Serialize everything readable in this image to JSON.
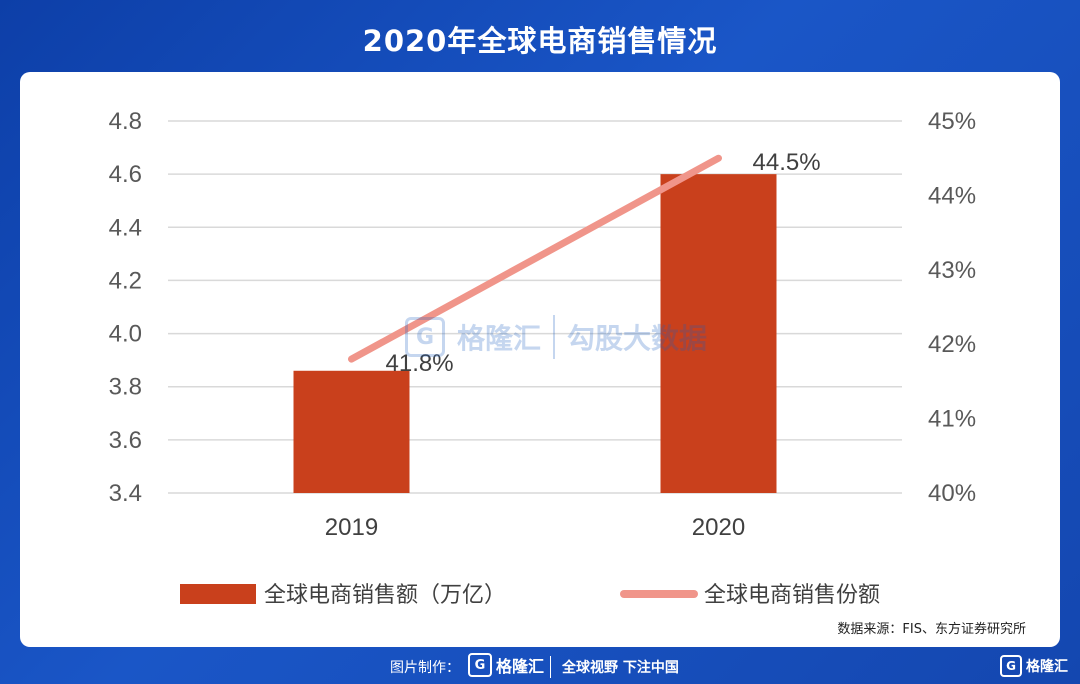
{
  "title": "2020年全球电商销售情况",
  "source": "数据来源：FIS、东方证券研究所",
  "watermark": {
    "logo_glyph": "G",
    "brand": "格隆汇",
    "right_text": "勾股大数据"
  },
  "footer": {
    "made_by_label": "图片制作：",
    "logo_glyph": "G",
    "brand": "格隆汇",
    "slogan": "全球视野 下注中国"
  },
  "corner": {
    "logo_glyph": "G",
    "brand": "格隆汇"
  },
  "colors": {
    "bar": "#c9401c",
    "line": "#f0958a",
    "grid": "#d9d9d9",
    "background": "#1a56c7"
  },
  "chart_data": {
    "type": "bar",
    "categories": [
      "2019",
      "2020"
    ],
    "series": [
      {
        "name": "全球电商销售额（万亿）",
        "type": "bar",
        "axis": "left",
        "values": [
          3.86,
          4.6
        ]
      },
      {
        "name": "全球电商销售份额",
        "type": "line",
        "axis": "right",
        "values": [
          41.8,
          44.5
        ],
        "labels": [
          "41.8%",
          "44.5%"
        ]
      }
    ],
    "y_left": {
      "min": 3.4,
      "max": 4.8,
      "ticks": [
        "3.4",
        "3.6",
        "3.8",
        "4.0",
        "4.2",
        "4.4",
        "4.6",
        "4.8"
      ]
    },
    "y_right": {
      "min": 40,
      "max": 45,
      "ticks": [
        "40%",
        "41%",
        "42%",
        "43%",
        "44%",
        "45%"
      ]
    },
    "grid": true,
    "legend_position": "bottom"
  }
}
